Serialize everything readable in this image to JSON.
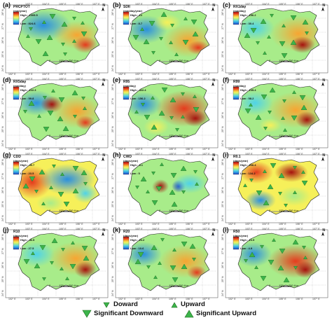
{
  "tick_labels": {
    "top": [
      "102° E",
      "103° E",
      "104° E",
      "105° E",
      "106° E",
      "107° E"
    ],
    "side": [
      "28° N",
      "27° N",
      "26° N",
      "25° N",
      "24° N"
    ]
  },
  "scale": {
    "zero": "0",
    "mid": "125",
    "end": "250",
    "unit": "Km"
  },
  "north": "N",
  "panels": [
    {
      "letter": "(a)",
      "index": "PRCPTOT",
      "unit": "(mm/year)",
      "high": "High : 1305.5",
      "low": "Low : 824.6",
      "field": "prcptot"
    },
    {
      "letter": "(b)",
      "index": "SDII",
      "unit": "(mm/day/year)",
      "high": "High : 14",
      "low": "Low : 8.7",
      "field": "sdii"
    },
    {
      "letter": "(c)",
      "index": "RX1day",
      "unit": "(mm/day)",
      "high": "High : 156.2",
      "low": "Low : 30.4",
      "field": "rx1"
    },
    {
      "letter": "(d)",
      "index": "RX5day",
      "unit": "(mm/day)",
      "high": "High : 122.3",
      "low": "Low : 59.8",
      "field": "rx5"
    },
    {
      "letter": "(e)",
      "index": "R95",
      "unit": "(mm/day)",
      "high": "High : 422.4",
      "low": "Low : 156.2",
      "field": "r95"
    },
    {
      "letter": "(f)",
      "index": "R99",
      "unit": "(mm/day)",
      "high": "High : 135.4",
      "low": "Low : 58.2",
      "field": "r99"
    },
    {
      "letter": "(g)",
      "index": "CDD",
      "unit": "(days/year)",
      "high": "High : 45.7",
      "low": "Low : 23.5",
      "field": "cdd"
    },
    {
      "letter": "(h)",
      "index": "CWD",
      "unit": "(days/year)",
      "high": "High : 8.1",
      "low": "Low : 5",
      "field": "cwd"
    },
    {
      "letter": "(i)",
      "index": "R0.1",
      "unit": "(days/year)",
      "high": "High : 206.4",
      "low": "Low : 134.2",
      "field": "r01"
    },
    {
      "letter": "(j)",
      "index": "R10",
      "unit": "(days/year)",
      "high": "High : 46.5",
      "low": "Low : 27.5",
      "field": "r10"
    },
    {
      "letter": "(k)",
      "index": "R20",
      "unit": "(days/year)",
      "high": "High : 23.2",
      "low": "Low : 10.6",
      "field": "r20"
    },
    {
      "letter": "(l)",
      "index": "R50",
      "unit": "(days/year)",
      "high": "High : 13.9",
      "low": "Low : 4.9",
      "field": "r50"
    }
  ],
  "legend": {
    "downward": "Doward",
    "upward": "Upward",
    "sig_down": "Significant Downward",
    "sig_up": "Significant Upward",
    "colors": {
      "down": "#3cb44b",
      "up": "#3cb44b",
      "outline": "#1a6b1a"
    }
  },
  "colors": {
    "ramp": [
      "#1f3fbf",
      "#2a8fe0",
      "#4fd3e8",
      "#a8ec8a",
      "#f6f05a",
      "#f7a532",
      "#e53b1d",
      "#a6120e"
    ]
  }
}
